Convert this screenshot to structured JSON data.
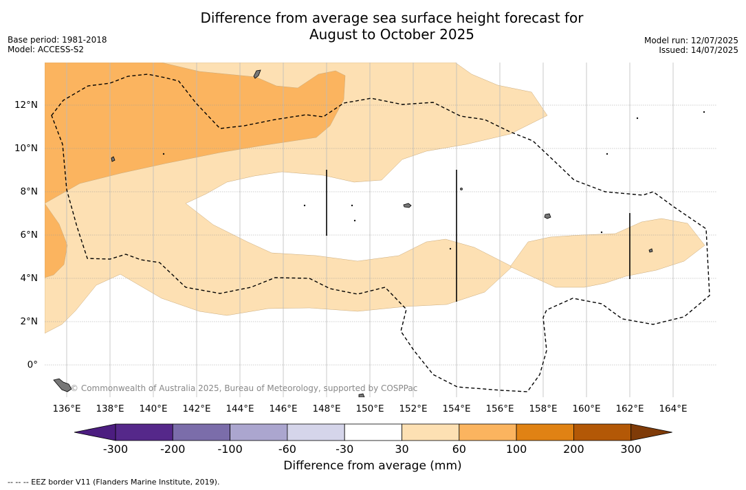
{
  "title_line1": "Difference from average sea surface height forecast for",
  "title_line2": "August to October 2025",
  "meta_left": [
    "Base period: 1981-2018",
    "Model: ACCESS-S2"
  ],
  "meta_right": [
    "Model run: 12/07/2025",
    "Issued: 14/07/2025"
  ],
  "lat_ticks": [
    {
      "value": 12,
      "label": "12°N"
    },
    {
      "value": 10,
      "label": "10°N"
    },
    {
      "value": 8,
      "label": "8°N"
    },
    {
      "value": 6,
      "label": "6°N"
    },
    {
      "value": 4,
      "label": "4°N"
    },
    {
      "value": 2,
      "label": "2°N"
    },
    {
      "value": 0,
      "label": "0°"
    }
  ],
  "lon_ticks": [
    {
      "value": 136,
      "label": "136°E"
    },
    {
      "value": 138,
      "label": "138°E"
    },
    {
      "value": 140,
      "label": "140°E"
    },
    {
      "value": 142,
      "label": "142°E"
    },
    {
      "value": 144,
      "label": "144°E"
    },
    {
      "value": 146,
      "label": "146°E"
    },
    {
      "value": 148,
      "label": "148°E"
    },
    {
      "value": 150,
      "label": "150°E"
    },
    {
      "value": 152,
      "label": "152°E"
    },
    {
      "value": 154,
      "label": "154°E"
    },
    {
      "value": 156,
      "label": "156°E"
    },
    {
      "value": 158,
      "label": "158°E"
    },
    {
      "value": 160,
      "label": "160°E"
    },
    {
      "value": 162,
      "label": "162°E"
    },
    {
      "value": 164,
      "label": "164°E"
    }
  ],
  "credit": "© Commonwealth of Australia 2025, Bureau of Meteorology, supported by COSPPac",
  "colorbar": {
    "title": "Difference from average (mm)",
    "ticks": [
      "-300",
      "-200",
      "-100",
      "-60",
      "-30",
      "30",
      "60",
      "100",
      "200",
      "300"
    ],
    "colors": [
      "#4c1d80",
      "#55288a",
      "#7b6daa",
      "#aba6cf",
      "#d5d5ea",
      "#ffffff",
      "#fde0b3",
      "#fbb45f",
      "#e08214",
      "#b35806",
      "#7f3b08"
    ]
  },
  "footnote": "-- -- -- EEZ border V11 (Flanders Marine Institute, 2019)."
}
